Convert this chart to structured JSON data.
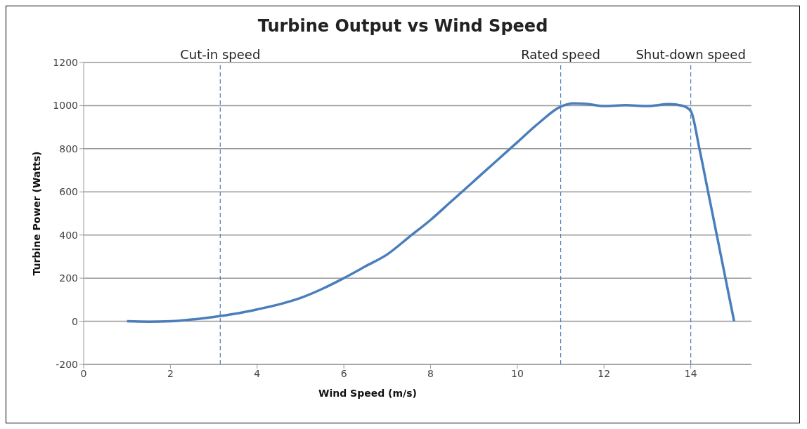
{
  "chart_data": {
    "type": "line",
    "title": "Turbine Output vs Wind Speed",
    "xlabel": "Wind Speed (m/s)",
    "ylabel": "Turbine Power (Watts)",
    "x": [
      1,
      1.5,
      2,
      2.5,
      3,
      3.5,
      4,
      4.5,
      5,
      5.5,
      6,
      6.5,
      7,
      7.5,
      8,
      8.5,
      9,
      9.5,
      10,
      10.5,
      11,
      11.3,
      11.6,
      12,
      12.5,
      13,
      13.5,
      13.8,
      14,
      14.2,
      14.4,
      14.6,
      14.8,
      15
    ],
    "series": [
      {
        "color": "#4a7ebb",
        "values": [
          0,
          -2,
          0,
          8,
          20,
          35,
          55,
          78,
          108,
          150,
          200,
          255,
          310,
          390,
          470,
          560,
          650,
          740,
          830,
          920,
          995,
          1010,
          1008,
          998,
          1002,
          998,
          1007,
          1000,
          975,
          800,
          600,
          400,
          200,
          0
        ]
      }
    ],
    "xlim": [
      0,
      15.4
    ],
    "xticks": [
      0,
      2,
      4,
      6,
      8,
      10,
      12,
      14
    ],
    "ylim": [
      -200,
      1200
    ],
    "yticks": [
      -200,
      0,
      200,
      400,
      600,
      800,
      1000,
      1200
    ],
    "grid": "y",
    "marker": "none",
    "line_style": "solid",
    "ref_lines": [
      {
        "axis": "x",
        "value": 3.15,
        "label": "Cut-in speed",
        "line_style": "dashed",
        "color": "#4a7ebb"
      },
      {
        "axis": "x",
        "value": 11,
        "label": "Rated speed",
        "line_style": "dashed",
        "color": "#4a7ebb"
      },
      {
        "axis": "x",
        "value": 14,
        "label": "Shut-down speed",
        "line_style": "dashed",
        "color": "#4a7ebb"
      }
    ]
  }
}
